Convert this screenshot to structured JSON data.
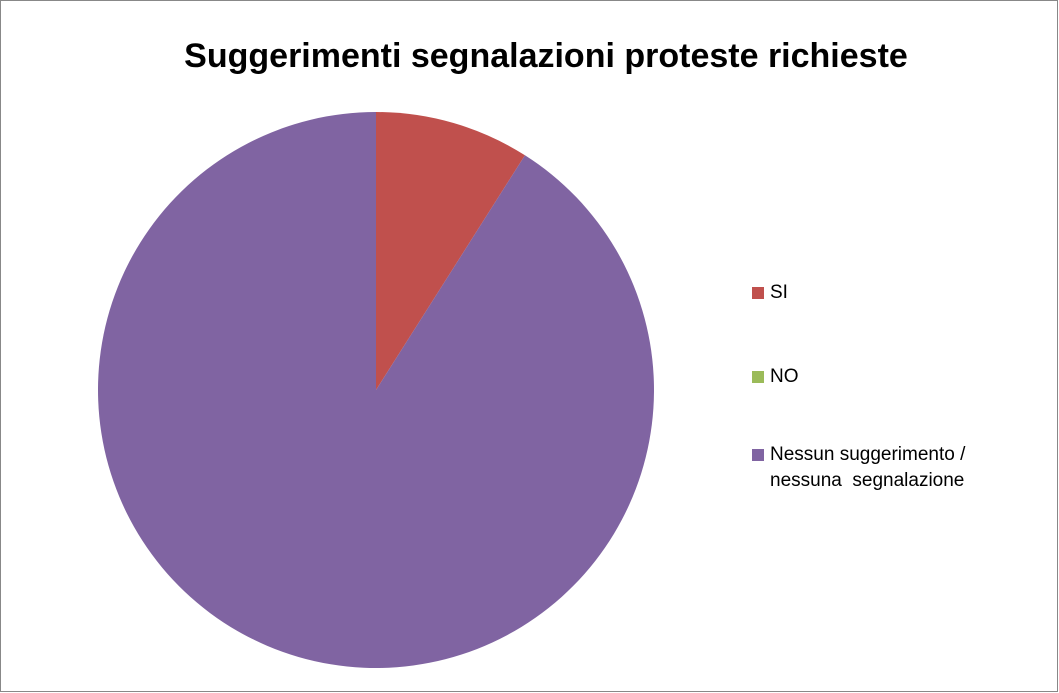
{
  "chart_data": {
    "type": "pie",
    "title": "Suggerimenti segnalazioni proteste richieste",
    "categories": [
      "SI",
      "NO",
      "Nessun suggerimento / nessuna  segnalazione"
    ],
    "values": [
      9,
      0,
      91
    ],
    "colors": [
      "#c0504d",
      "#9bbb59",
      "#8064a2"
    ],
    "legend": "right"
  }
}
